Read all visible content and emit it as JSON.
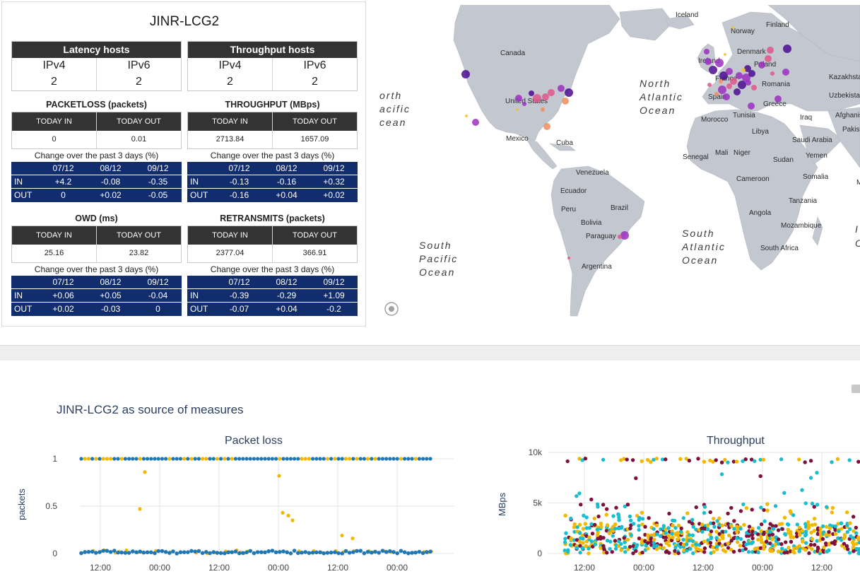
{
  "site_name": "JINR-LCG2",
  "latency_hosts": {
    "title": "Latency hosts",
    "ipv4_label": "IPv4",
    "ipv6_label": "IPv6",
    "ipv4": "2",
    "ipv6": "2"
  },
  "throughput_hosts": {
    "title": "Throughput hosts",
    "ipv4_label": "IPv4",
    "ipv6_label": "IPv6",
    "ipv4": "2",
    "ipv6": "2"
  },
  "change_label": "Change over the past 3 days (%)",
  "today_in_label": "TODAY IN",
  "today_out_label": "TODAY OUT",
  "change_dates": [
    "07/12",
    "08/12",
    "09/12"
  ],
  "metrics": {
    "packetloss": {
      "title": "PACKETLOSS (packets)",
      "today_in": "0",
      "today_out": "0.01",
      "in_label": "IN",
      "out_label": "OUT",
      "in": [
        "+4.2",
        "-0.08",
        "-0.35"
      ],
      "out": [
        "0",
        "+0.02",
        "-0.05"
      ]
    },
    "throughput": {
      "title": "THROUGHPUT (MBps)",
      "today_in": "2713.84",
      "today_out": "1657.09",
      "in_label": "IN",
      "out_label": "OUT",
      "in": [
        "-0.13",
        "-0.16",
        "+0.32"
      ],
      "out": [
        "-0.16",
        "+0.04",
        "+0.02"
      ]
    },
    "owd": {
      "title": "OWD (ms)",
      "today_in": "25.16",
      "today_out": "23.82",
      "in_label": "IN",
      "out_label": "OUT",
      "in": [
        "+0.06",
        "+0.05",
        "-0.04"
      ],
      "out": [
        "+0.02",
        "-0.03",
        "0"
      ]
    },
    "retransmits": {
      "title": "RETRANSMITS (packets)",
      "today_in": "2377.04",
      "today_out": "366.91",
      "in_label": "IN",
      "out_label": "OUT",
      "in": [
        "-0.39",
        "-0.29",
        "+1.09"
      ],
      "out": [
        "-0.07",
        "+0.04",
        "-0.2"
      ]
    }
  },
  "map": {
    "labels": [
      {
        "t": "Iceland",
        "x": 424,
        "y": 17
      },
      {
        "t": "Finland",
        "x": 552,
        "y": 31
      },
      {
        "t": "Norway",
        "x": 502,
        "y": 40
      },
      {
        "t": "Canada",
        "x": 176,
        "y": 71
      },
      {
        "t": "Denmark",
        "x": 511,
        "y": 69
      },
      {
        "t": "Ireland",
        "x": 456,
        "y": 82
      },
      {
        "t": "Poland",
        "x": 535,
        "y": 87
      },
      {
        "t": "Kazakhsta",
        "x": 641,
        "y": 105
      },
      {
        "t": "France",
        "x": 480,
        "y": 107
      },
      {
        "t": "Romania",
        "x": 546,
        "y": 115
      },
      {
        "t": "United States",
        "x": 183,
        "y": 139
      },
      {
        "t": "Uzbekistan",
        "x": 641,
        "y": 131
      },
      {
        "t": "Spain",
        "x": 470,
        "y": 133
      },
      {
        "t": "Greece",
        "x": 548,
        "y": 143
      },
      {
        "t": "Tunisia",
        "x": 505,
        "y": 159
      },
      {
        "t": "Morocco",
        "x": 460,
        "y": 165
      },
      {
        "t": "Iraq",
        "x": 600,
        "y": 162
      },
      {
        "t": "Afghanista",
        "x": 650,
        "y": 159
      },
      {
        "t": "Pakistan",
        "x": 660,
        "y": 179
      },
      {
        "t": "Libya",
        "x": 532,
        "y": 182
      },
      {
        "t": "Mexico",
        "x": 184,
        "y": 192
      },
      {
        "t": "Cuba",
        "x": 255,
        "y": 198
      },
      {
        "t": "Saudi Arabia",
        "x": 589,
        "y": 194
      },
      {
        "t": "Senegal",
        "x": 434,
        "y": 218
      },
      {
        "t": "Mali",
        "x": 480,
        "y": 212
      },
      {
        "t": "Niger",
        "x": 506,
        "y": 212
      },
      {
        "t": "Yemen",
        "x": 608,
        "y": 216
      },
      {
        "t": "Sudan",
        "x": 562,
        "y": 222
      },
      {
        "t": "Venezuela",
        "x": 283,
        "y": 240
      },
      {
        "t": "Cameroon",
        "x": 510,
        "y": 249
      },
      {
        "t": "Somalia",
        "x": 604,
        "y": 246
      },
      {
        "t": "Malo",
        "x": 680,
        "y": 254
      },
      {
        "t": "Ecuador",
        "x": 261,
        "y": 266
      },
      {
        "t": "Tanzania",
        "x": 584,
        "y": 280
      },
      {
        "t": "Peru",
        "x": 262,
        "y": 292
      },
      {
        "t": "Brazil",
        "x": 332,
        "y": 290
      },
      {
        "t": "Angola",
        "x": 528,
        "y": 297
      },
      {
        "t": "Bolivia",
        "x": 290,
        "y": 311
      },
      {
        "t": "Mozambique",
        "x": 573,
        "y": 315
      },
      {
        "t": "Paraguay",
        "x": 297,
        "y": 330
      },
      {
        "t": "South Africa",
        "x": 544,
        "y": 347
      },
      {
        "t": "Argentina",
        "x": 291,
        "y": 373
      }
    ],
    "oceans": [
      {
        "lines": [
          "orth",
          "acific",
          "cean"
        ],
        "x": 5,
        "y": 133
      },
      {
        "lines": [
          "North",
          "Atlantic",
          "Ocean"
        ],
        "x": 373,
        "y": 116
      },
      {
        "lines": [
          "South",
          "Atlantic",
          "Ocean"
        ],
        "x": 433,
        "y": 328
      },
      {
        "lines": [
          "South",
          "Pacific",
          "Ocean"
        ],
        "x": 61,
        "y": 345
      }
    ],
    "edge_letters": [
      "I",
      "O"
    ],
    "colors": {
      "land": "#c3c7d0",
      "sea": "#ffffff",
      "dot_dark": "#4b0c91",
      "dot_mid": "#9b2fbf",
      "dot_pink": "#e0558a",
      "dot_orange": "#f08d5b",
      "dot_yellow": "#f0c22f"
    }
  },
  "section_title": "JINR-LCG2 as source of measures",
  "charts": {
    "packet_loss": {
      "title": "Packet loss",
      "ylabel": "packets"
    },
    "throughput": {
      "title": "Throughput",
      "ylabel": "MBps"
    }
  },
  "chart_data": [
    {
      "type": "scatter",
      "title": "Packet loss",
      "ylabel": "packets",
      "ylim": [
        0,
        1
      ],
      "yticks": [
        "0",
        "0.5",
        "1"
      ],
      "xticks": [
        "12:00",
        "00:00",
        "12:00",
        "00:00",
        "12:00",
        "00:00"
      ],
      "grid": true,
      "series": [
        {
          "color": "#1f77b4",
          "baseline": 0,
          "top_band": 1
        },
        {
          "color": "#f2b800",
          "points": [
            [
              0.47,
              0.47
            ],
            [
              0.86,
              0.86
            ],
            [
              0.82,
              0.82
            ],
            [
              0.43,
              0.43
            ],
            [
              0.4,
              0.4
            ],
            [
              0.35,
              0.35
            ],
            [
              0.19,
              0.19
            ],
            [
              0.16,
              0.16
            ]
          ]
        }
      ]
    },
    {
      "type": "scatter",
      "title": "Throughput",
      "ylabel": "MBps",
      "ylim": [
        0,
        10000
      ],
      "yticks": [
        "0",
        "5k",
        "10k"
      ],
      "xticks": [
        "12:00",
        "00:00",
        "00:00",
        "12:00"
      ],
      "grid": true,
      "series": [
        {
          "color": "#17becf"
        },
        {
          "color": "#7f0f3b"
        },
        {
          "color": "#f2b800"
        }
      ]
    }
  ]
}
